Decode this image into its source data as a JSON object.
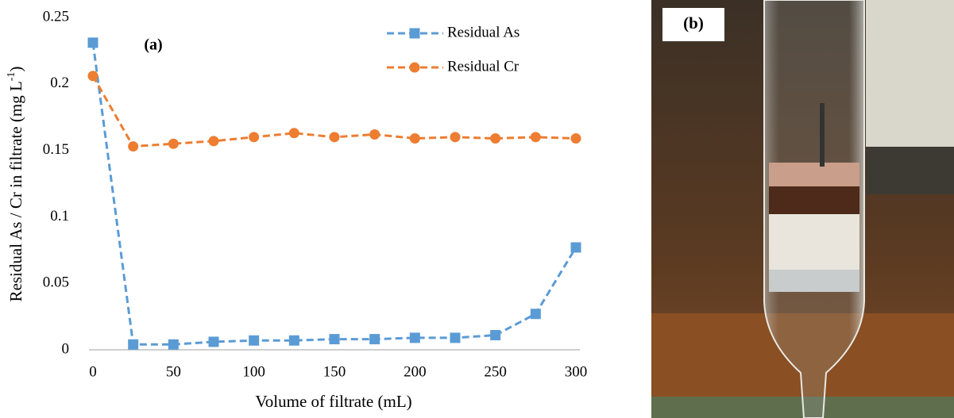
{
  "chart_data": {
    "type": "line",
    "ylabel_parts": [
      "Residual As / Cr in filtrate (mg L",
      "-1",
      ")"
    ],
    "xlabel": "Volume of filtrate (mL)",
    "annotation": "(a)",
    "x": [
      0,
      25,
      50,
      75,
      100,
      125,
      150,
      175,
      200,
      225,
      250,
      275,
      300
    ],
    "xlim": [
      0,
      300
    ],
    "xticks": [
      0,
      50,
      100,
      150,
      200,
      250,
      300
    ],
    "ylim": [
      0,
      0.25
    ],
    "yticks": [
      0,
      0.05,
      0.1,
      0.15,
      0.2,
      0.25
    ],
    "legend": "upper right",
    "series": [
      {
        "name": "Residual As",
        "color": "#5b9bd5",
        "marker": "square",
        "values": [
          0.231,
          0.004,
          0.004,
          0.006,
          0.007,
          0.007,
          0.008,
          0.008,
          0.009,
          0.009,
          0.011,
          0.027,
          0.077
        ]
      },
      {
        "name": "Residual Cr",
        "color": "#ed7d31",
        "marker": "circle",
        "values": [
          0.206,
          0.153,
          0.155,
          0.157,
          0.16,
          0.163,
          0.16,
          0.162,
          0.159,
          0.16,
          0.159,
          0.16,
          0.159
        ]
      }
    ]
  },
  "photo": {
    "label": "(b)"
  }
}
